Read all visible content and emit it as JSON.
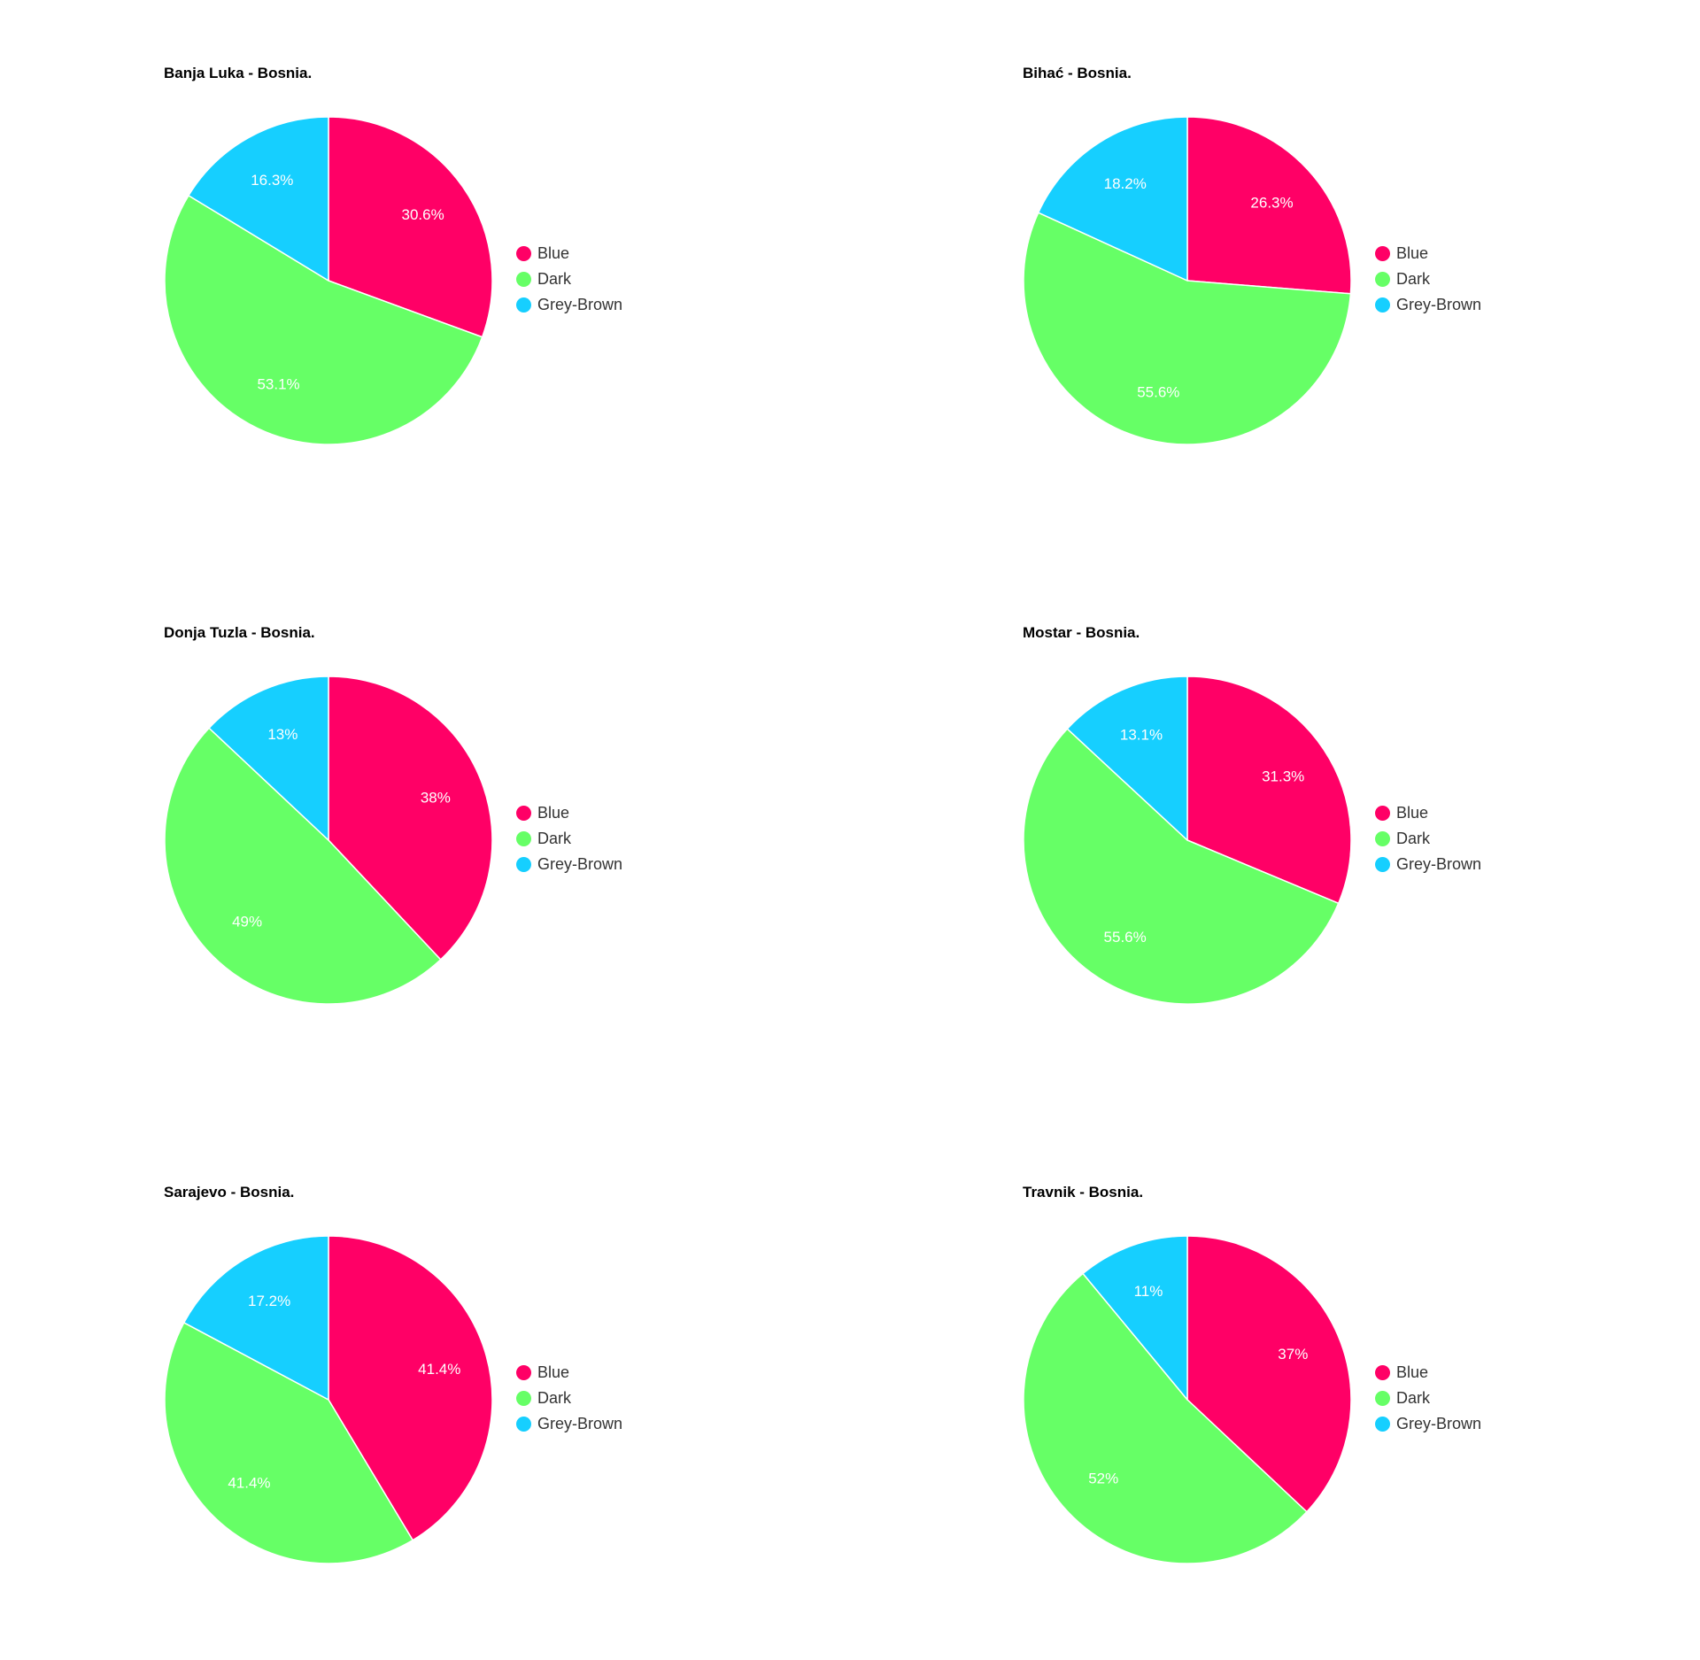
{
  "chart_data": [
    {
      "type": "pie",
      "title": "Banja Luka - Bosnia.",
      "categories": [
        "Blue",
        "Dark",
        "Grey-Brown"
      ],
      "values": [
        30.6,
        53.1,
        16.3
      ],
      "slice_labels": [
        "30.6%",
        "53.1%",
        "16.3%"
      ],
      "colors": [
        "#ff0066",
        "#66ff66",
        "#16cfff"
      ],
      "legend": "right"
    },
    {
      "type": "pie",
      "title": "Bihać - Bosnia.",
      "categories": [
        "Blue",
        "Dark",
        "Grey-Brown"
      ],
      "values": [
        26.3,
        55.6,
        18.2
      ],
      "slice_labels": [
        "26.3%",
        "55.6%",
        "18.2%"
      ],
      "colors": [
        "#ff0066",
        "#66ff66",
        "#16cfff"
      ],
      "legend": "right"
    },
    {
      "type": "pie",
      "title": "Donja Tuzla - Bosnia.",
      "categories": [
        "Blue",
        "Dark",
        "Grey-Brown"
      ],
      "values": [
        38,
        49,
        13
      ],
      "slice_labels": [
        "38%",
        "49%",
        "13%"
      ],
      "colors": [
        "#ff0066",
        "#66ff66",
        "#16cfff"
      ],
      "legend": "right"
    },
    {
      "type": "pie",
      "title": "Mostar - Bosnia.",
      "categories": [
        "Blue",
        "Dark",
        "Grey-Brown"
      ],
      "values": [
        31.3,
        55.6,
        13.1
      ],
      "slice_labels": [
        "31.3%",
        "55.6%",
        "13.1%"
      ],
      "colors": [
        "#ff0066",
        "#66ff66",
        "#16cfff"
      ],
      "legend": "right"
    },
    {
      "type": "pie",
      "title": "Sarajevo - Bosnia.",
      "categories": [
        "Blue",
        "Dark",
        "Grey-Brown"
      ],
      "values": [
        41.4,
        41.4,
        17.2
      ],
      "slice_labels": [
        "41.4%",
        "41.4%",
        "17.2%"
      ],
      "colors": [
        "#ff0066",
        "#66ff66",
        "#16cfff"
      ],
      "legend": "right"
    },
    {
      "type": "pie",
      "title": "Travnik - Bosnia.",
      "categories": [
        "Blue",
        "Dark",
        "Grey-Brown"
      ],
      "values": [
        37,
        52,
        11
      ],
      "slice_labels": [
        "37%",
        "52%",
        "11%"
      ],
      "colors": [
        "#ff0066",
        "#66ff66",
        "#16cfff"
      ],
      "legend": "right"
    }
  ]
}
